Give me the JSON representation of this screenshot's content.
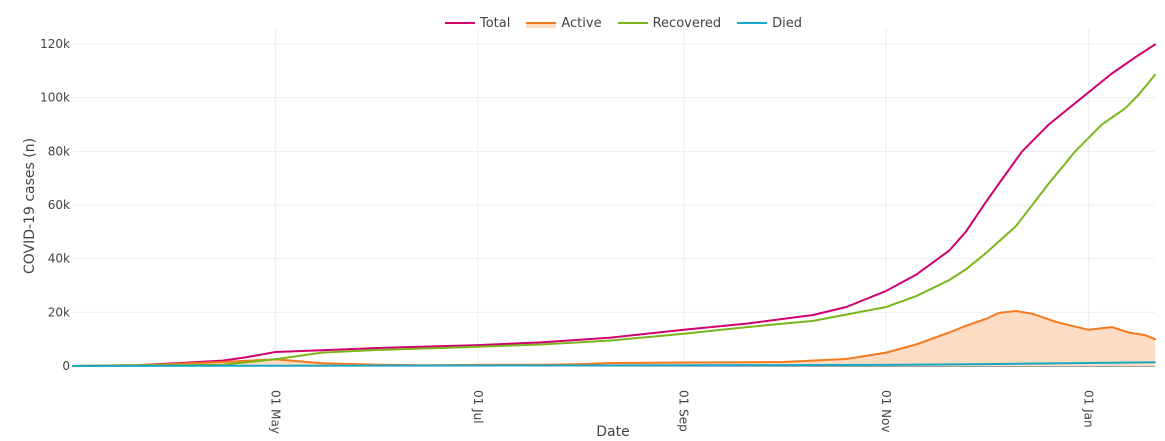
{
  "chart_data": {
    "type": "line",
    "xlabel": "Date",
    "ylabel": "COVID-19 cases (n)",
    "x_domain": [
      "2020-03-01",
      "2021-01-21"
    ],
    "ylim": [
      0,
      120000
    ],
    "y_ticks": [
      0,
      20000,
      40000,
      60000,
      80000,
      100000,
      120000
    ],
    "y_tick_labels": [
      "0",
      "20k",
      "40k",
      "60k",
      "80k",
      "100k",
      "120k"
    ],
    "x_ticks": [
      "2020-05-01",
      "2020-07-01",
      "2020-09-01",
      "2020-11-01",
      "2021-01-01"
    ],
    "x_tick_labels": [
      "01 May",
      "01 Jul",
      "01 Sep",
      "01 Nov",
      "01 Jan"
    ],
    "grid": true,
    "legend_position": "top-center",
    "series": [
      {
        "name": "Total",
        "color": "#d0006f",
        "fill": false,
        "points": [
          [
            "2020-03-01",
            0
          ],
          [
            "2020-03-20",
            300
          ],
          [
            "2020-04-01",
            1000
          ],
          [
            "2020-04-15",
            2000
          ],
          [
            "2020-04-22",
            3200
          ],
          [
            "2020-05-01",
            5200
          ],
          [
            "2020-05-15",
            5900
          ],
          [
            "2020-06-01",
            6700
          ],
          [
            "2020-07-01",
            7800
          ],
          [
            "2020-07-20",
            8800
          ],
          [
            "2020-08-10",
            10600
          ],
          [
            "2020-09-01",
            13500
          ],
          [
            "2020-09-20",
            15800
          ],
          [
            "2020-10-10",
            19000
          ],
          [
            "2020-10-20",
            22000
          ],
          [
            "2020-11-01",
            28000
          ],
          [
            "2020-11-10",
            34000
          ],
          [
            "2020-11-20",
            43000
          ],
          [
            "2020-11-25",
            50000
          ],
          [
            "2020-12-01",
            61000
          ],
          [
            "2020-12-05",
            68000
          ],
          [
            "2020-12-12",
            80000
          ],
          [
            "2020-12-20",
            90000
          ],
          [
            "2020-12-27",
            97000
          ],
          [
            "2021-01-01",
            102000
          ],
          [
            "2021-01-08",
            109000
          ],
          [
            "2021-01-15",
            115000
          ],
          [
            "2021-01-21",
            119800
          ]
        ]
      },
      {
        "name": "Active",
        "color": "#f47a1f",
        "fill": true,
        "fill_color": "#fcdcc2",
        "points": [
          [
            "2020-03-01",
            0
          ],
          [
            "2020-03-20",
            300
          ],
          [
            "2020-04-01",
            800
          ],
          [
            "2020-04-15",
            1500
          ],
          [
            "2020-05-01",
            2500
          ],
          [
            "2020-05-15",
            1000
          ],
          [
            "2020-06-01",
            500
          ],
          [
            "2020-06-15",
            300
          ],
          [
            "2020-07-01",
            400
          ],
          [
            "2020-07-20",
            500
          ],
          [
            "2020-08-01",
            700
          ],
          [
            "2020-08-10",
            1100
          ],
          [
            "2020-09-01",
            1300
          ],
          [
            "2020-09-20",
            1400
          ],
          [
            "2020-10-01",
            1500
          ],
          [
            "2020-10-20",
            2600
          ],
          [
            "2020-11-01",
            5000
          ],
          [
            "2020-11-10",
            8000
          ],
          [
            "2020-11-20",
            12500
          ],
          [
            "2020-11-25",
            15000
          ],
          [
            "2020-12-01",
            17500
          ],
          [
            "2020-12-05",
            19800
          ],
          [
            "2020-12-10",
            20500
          ],
          [
            "2020-12-15",
            19500
          ],
          [
            "2020-12-22",
            16500
          ],
          [
            "2020-12-27",
            15000
          ],
          [
            "2021-01-01",
            13500
          ],
          [
            "2021-01-08",
            14500
          ],
          [
            "2021-01-13",
            12500
          ],
          [
            "2021-01-18",
            11500
          ],
          [
            "2021-01-21",
            10000
          ]
        ]
      },
      {
        "name": "Recovered",
        "color": "#7ab51d",
        "fill": false,
        "points": [
          [
            "2020-03-01",
            0
          ],
          [
            "2020-04-15",
            500
          ],
          [
            "2020-05-01",
            2500
          ],
          [
            "2020-05-15",
            5000
          ],
          [
            "2020-06-01",
            6000
          ],
          [
            "2020-07-01",
            7200
          ],
          [
            "2020-07-20",
            8000
          ],
          [
            "2020-08-10",
            9500
          ],
          [
            "2020-09-01",
            12000
          ],
          [
            "2020-09-20",
            14500
          ],
          [
            "2020-10-10",
            16800
          ],
          [
            "2020-11-01",
            22000
          ],
          [
            "2020-11-10",
            26000
          ],
          [
            "2020-11-20",
            32000
          ],
          [
            "2020-11-25",
            36000
          ],
          [
            "2020-12-01",
            42000
          ],
          [
            "2020-12-10",
            52000
          ],
          [
            "2020-12-20",
            68000
          ],
          [
            "2020-12-28",
            80000
          ],
          [
            "2021-01-05",
            90000
          ],
          [
            "2021-01-12",
            96000
          ],
          [
            "2021-01-16",
            101000
          ],
          [
            "2021-01-21",
            108500
          ]
        ]
      },
      {
        "name": "Died",
        "color": "#17a8c7",
        "fill": false,
        "points": [
          [
            "2020-03-01",
            0
          ],
          [
            "2020-05-01",
            120
          ],
          [
            "2020-08-01",
            200
          ],
          [
            "2020-11-01",
            400
          ],
          [
            "2020-12-01",
            700
          ],
          [
            "2021-01-01",
            1100
          ],
          [
            "2021-01-21",
            1400
          ]
        ]
      }
    ]
  }
}
